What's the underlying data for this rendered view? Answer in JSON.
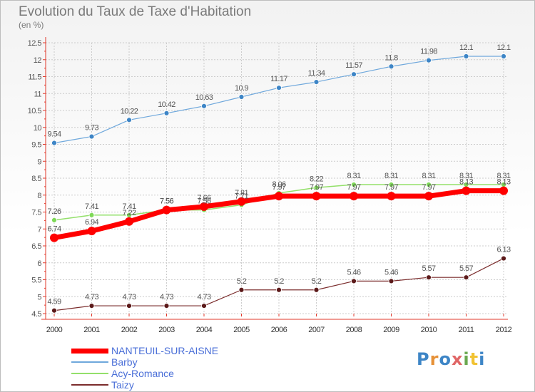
{
  "header": {
    "title": "Evolution du Taux de Taxe d'Habitation",
    "subtitle": "(en %)"
  },
  "colors": {
    "axis": "#e0392b",
    "grid": "#cccccc",
    "text": "#555555"
  },
  "chart_data": {
    "type": "line",
    "x": [
      "2000",
      "2001",
      "2002",
      "2003",
      "2004",
      "2005",
      "2006",
      "2007",
      "2008",
      "2009",
      "2010",
      "2011",
      "2012"
    ],
    "ylim": [
      4.5,
      12.5
    ],
    "yticks": [
      "4.5",
      "5",
      "5.5",
      "6",
      "6.5",
      "7",
      "7.5",
      "8",
      "8.5",
      "9",
      "9.5",
      "10",
      "10.5",
      "11",
      "11.5",
      "12",
      "12.5"
    ],
    "grid": true,
    "legend_position": "bottom-left",
    "series": [
      {
        "name": "NANTEUIL-SUR-AISNE",
        "color": "#ff0000",
        "marker": "#ff0000",
        "label_color": "#555555",
        "width": 7,
        "r": 6,
        "values": [
          6.74,
          6.94,
          7.22,
          7.56,
          7.66,
          7.81,
          7.97,
          7.97,
          7.97,
          7.97,
          7.97,
          8.13,
          8.13
        ],
        "labels": [
          "6.74",
          "6.94",
          "7.22",
          "7.56",
          "7.66",
          "7.81",
          "7.97",
          "7.97",
          "7.97",
          "7.97",
          "7.97",
          "8.13",
          "8.13"
        ]
      },
      {
        "name": "Barby",
        "color": "#6fa8dc",
        "marker": "#3d85c6",
        "label_color": "#555555",
        "width": 1.2,
        "r": 3.5,
        "values": [
          9.54,
          9.73,
          10.22,
          10.42,
          10.63,
          10.9,
          11.17,
          11.34,
          11.57,
          11.8,
          11.98,
          12.1,
          12.1
        ],
        "labels": [
          "9.54",
          "9.73",
          "10.22",
          "10.42",
          "10.63",
          "10.9",
          "11.17",
          "11.34",
          "11.57",
          "11.8",
          "11.98",
          "12.1",
          "12.1"
        ]
      },
      {
        "name": "Acy-Romance",
        "color": "#93e06a",
        "marker": "#7ed957",
        "label_color": "#555555",
        "width": 1.5,
        "r": 3.5,
        "values": [
          7.26,
          7.41,
          7.41,
          7.56,
          7.56,
          7.71,
          8.06,
          8.22,
          8.31,
          8.31,
          8.31,
          8.31,
          8.31
        ],
        "labels": [
          "7.26",
          "7.41",
          "7.41",
          "7.56",
          "7.56",
          "7.71",
          "8.06",
          "8.22",
          "8.31",
          "8.31",
          "8.31",
          "8.31",
          "8.31"
        ]
      },
      {
        "name": "Taizy",
        "color": "#7b2c2c",
        "marker": "#5c1a1a",
        "label_color": "#555555",
        "width": 1.2,
        "r": 3.5,
        "values": [
          4.59,
          4.73,
          4.73,
          4.73,
          4.73,
          5.2,
          5.2,
          5.2,
          5.46,
          5.46,
          5.57,
          5.57,
          6.13
        ],
        "labels": [
          "4.59",
          "4.73",
          "4.73",
          "4.73",
          "4.73",
          "5.2",
          "5.2",
          "5.2",
          "5.46",
          "5.46",
          "5.57",
          "5.57",
          "6.13"
        ]
      }
    ]
  },
  "legend": [
    {
      "label": "NANTEUIL-SUR-AISNE",
      "color": "#ff0000",
      "text_color": "#4a6fd8",
      "thickness": 7
    },
    {
      "label": "Barby",
      "color": "#6fa8dc",
      "text_color": "#4a6fd8",
      "thickness": 2
    },
    {
      "label": "Acy-Romance",
      "color": "#93e06a",
      "text_color": "#4a6fd8",
      "thickness": 2
    },
    {
      "label": "Taizy",
      "color": "#7b2c2c",
      "text_color": "#4a6fd8",
      "thickness": 2
    }
  ],
  "logo": {
    "text": "Proxiti",
    "colors": [
      "#3d85c6",
      "#e69138",
      "#3d85c6",
      "#e06666",
      "#6aa84f",
      "#f1c232",
      "#3d85c6"
    ]
  }
}
